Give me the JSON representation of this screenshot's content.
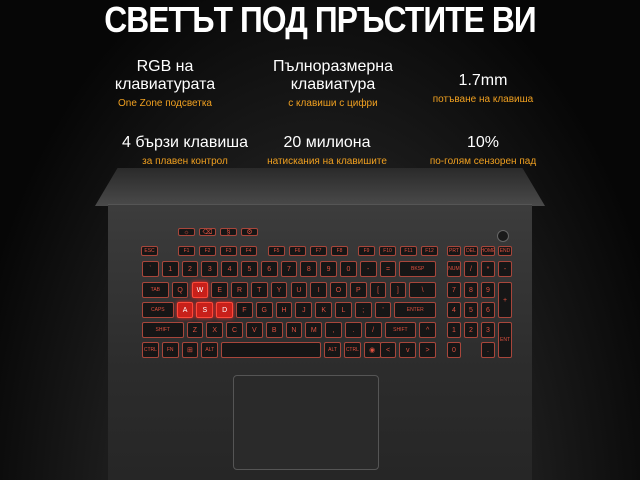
{
  "title": "СВЕТЪТ ПОД ПРЪСТИТЕ ВИ",
  "features": [
    {
      "main": "RGB на\nклавиатурата",
      "sub": "One Zone подсветка"
    },
    {
      "main": "Пълноразмерна\nклавиатура",
      "sub": "с клавиши с цифри"
    },
    {
      "main": "1.7mm",
      "sub": "потъване на клавиша"
    },
    {
      "main": "4 бързи клавиша",
      "sub": "за плавен контрол"
    },
    {
      "main": "20 милиона",
      "sub": "натискания на клавишите"
    },
    {
      "main": "10%",
      "sub": "по-голям сензорен пад"
    }
  ],
  "colors": {
    "key_border": "#a8463b",
    "key_text": "#e0503f",
    "highlight": "#c8201a",
    "accent_text": "#f0a020"
  },
  "keyboard": {
    "highlighted": [
      "W",
      "A",
      "S",
      "D"
    ],
    "quick_keys": [
      "☼",
      "⌫",
      "§",
      "⚙"
    ],
    "fn_row": [
      "ESC",
      "F1",
      "F2",
      "F3",
      "F4",
      "F5",
      "F6",
      "F7",
      "F8",
      "F9",
      "F10",
      "F11",
      "F12",
      "PRT",
      "DEL",
      "HOME",
      "END"
    ],
    "row1": [
      "`",
      "1",
      "2",
      "3",
      "4",
      "5",
      "6",
      "7",
      "8",
      "9",
      "0",
      "-",
      "=",
      "BKSP",
      "NUM",
      "/",
      "*",
      "-"
    ],
    "row2": [
      "TAB",
      "Q",
      "W",
      "E",
      "R",
      "T",
      "Y",
      "U",
      "I",
      "O",
      "P",
      "[",
      "]",
      "\\",
      "7",
      "8",
      "9",
      "+"
    ],
    "row3": [
      "CAPS",
      "A",
      "S",
      "D",
      "F",
      "G",
      "H",
      "J",
      "K",
      "L",
      ";",
      "'",
      "ENTER",
      "4",
      "5",
      "6"
    ],
    "row4": [
      "SHIFT",
      "Z",
      "X",
      "C",
      "V",
      "B",
      "N",
      "M",
      ",",
      ".",
      "/",
      "SHIFT",
      "^",
      "1",
      "2",
      "3",
      "ENT"
    ],
    "row5": [
      "CTRL",
      "FN",
      "⊞",
      "ALT",
      "",
      "ALT",
      "CTRL",
      "◉",
      "<",
      "v",
      ">",
      "0",
      "."
    ]
  }
}
